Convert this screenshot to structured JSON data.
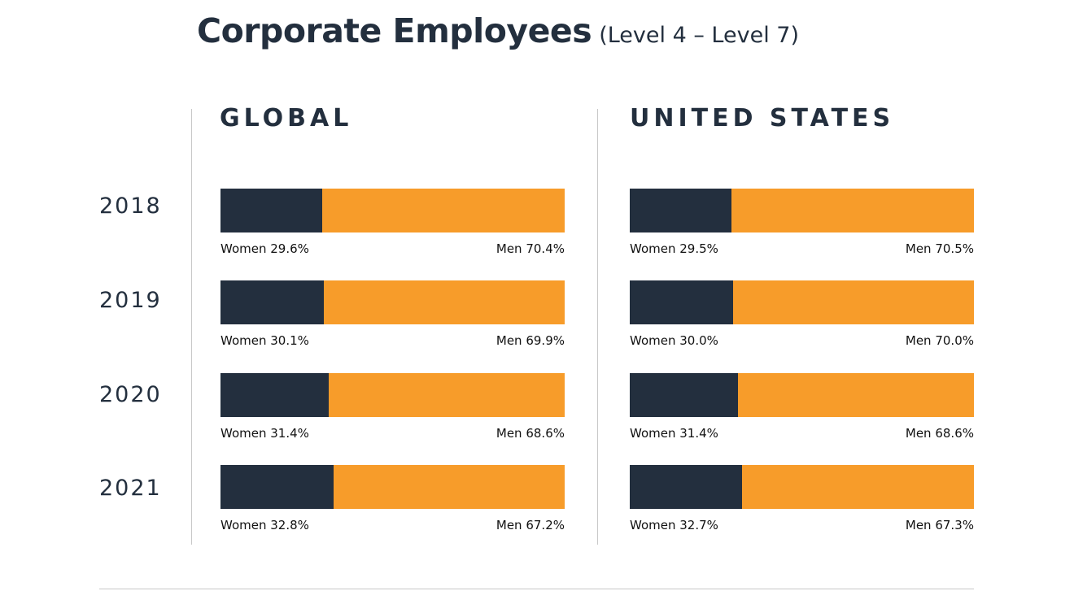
{
  "title": {
    "main": "Corporate Employees",
    "sub": "(Level 4 – Level 7)"
  },
  "colors": {
    "women": "#232f3e",
    "men": "#f79c2a"
  },
  "chart_data": [
    {
      "type": "bar",
      "stacked": true,
      "orientation": "horizontal",
      "title": "GLOBAL",
      "categories": [
        "2018",
        "2019",
        "2020",
        "2021"
      ],
      "series": [
        {
          "name": "Women",
          "values": [
            29.6,
            30.1,
            31.4,
            32.8
          ]
        },
        {
          "name": "Men",
          "values": [
            70.4,
            69.9,
            68.6,
            67.2
          ]
        }
      ],
      "labels": {
        "women": [
          "Women 29.6%",
          "Women 30.1%",
          "Women 31.4%",
          "Women 32.8%"
        ],
        "men": [
          "Men 70.4%",
          "Men 69.9%",
          "Men 68.6%",
          "Men 67.2%"
        ]
      },
      "xlim": [
        0,
        100
      ]
    },
    {
      "type": "bar",
      "stacked": true,
      "orientation": "horizontal",
      "title": "UNITED STATES",
      "categories": [
        "2018",
        "2019",
        "2020",
        "2021"
      ],
      "series": [
        {
          "name": "Women",
          "values": [
            29.5,
            30.0,
            31.4,
            32.7
          ]
        },
        {
          "name": "Men",
          "values": [
            70.5,
            70.0,
            68.6,
            67.3
          ]
        }
      ],
      "labels": {
        "women": [
          "Women 29.5%",
          "Women 30.0%",
          "Women 31.4%",
          "Women 32.7%"
        ],
        "men": [
          "Men 70.5%",
          "Men 70.0%",
          "Men 68.6%",
          "Men 67.3%"
        ]
      },
      "xlim": [
        0,
        100
      ]
    }
  ]
}
